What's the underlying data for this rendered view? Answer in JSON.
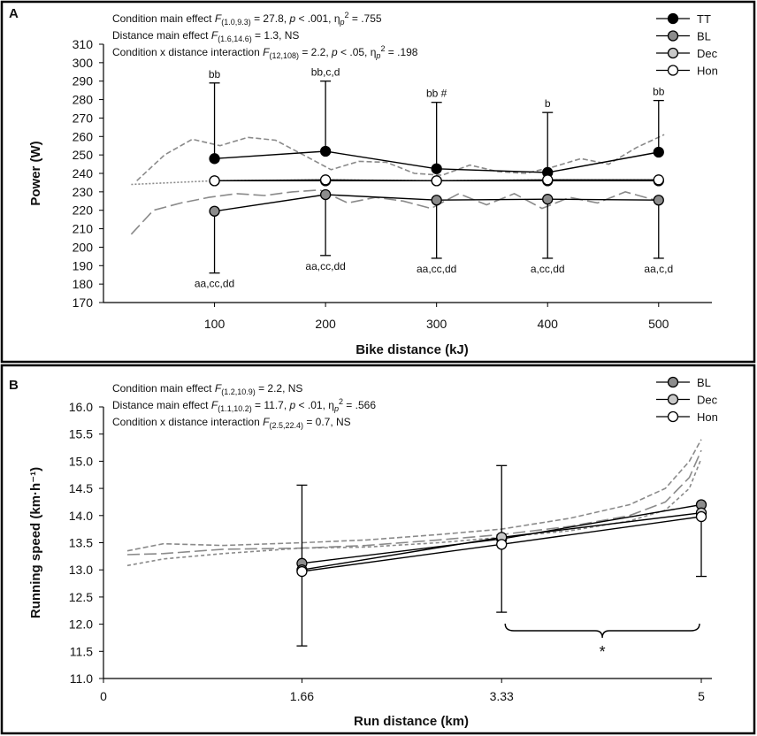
{
  "colors": {
    "tt": "#000000",
    "bl": "#8c8c8c",
    "dec": "#c8c8c8",
    "hon": "#ffffff",
    "trace": "#8a8a8a",
    "axis": "#000000",
    "frame": "#000000"
  },
  "chart_data": [
    {
      "panel": "A",
      "type": "line",
      "xlabel": "Bike distance (kJ)",
      "ylabel": "Power  (W)",
      "x": [
        100,
        200,
        300,
        400,
        500
      ],
      "x_ticks": [
        100,
        200,
        300,
        400,
        500
      ],
      "xlim": [
        0,
        540
      ],
      "ylim": [
        170,
        310
      ],
      "y_ticks": [
        170,
        180,
        190,
        200,
        210,
        220,
        230,
        240,
        250,
        260,
        270,
        280,
        290,
        300,
        310
      ],
      "grid": false,
      "legend_position": "top-right",
      "stats": [
        {
          "prefix": "Condition main effect ",
          "F": "F",
          "df": "(1.0,9.3)",
          "suffix1": " = 27.8, ",
          "p": "p",
          "suffix2": " < .001, ",
          "eta": "η",
          "eta_sub": "p",
          "eta_sup": "2",
          "suffix3": " = .755"
        },
        {
          "prefix": "Distance  main effect ",
          "F": "F",
          "df": "(1.6,14.6)",
          "suffix1": " = 1.3, NS"
        },
        {
          "prefix": "Condition x distance interaction ",
          "F": "F",
          "df": "(12,108)",
          "suffix1": " = 2.2, ",
          "p": "p",
          "suffix2": " < .05, ",
          "eta": "η",
          "eta_sub": "p",
          "eta_sup": "2",
          "suffix3": " = .198"
        }
      ],
      "series": [
        {
          "name": "TT",
          "values": [
            248,
            252,
            242.5,
            240.5,
            251.5
          ],
          "errors_up": [
            289,
            290,
            278.5,
            273,
            279.5
          ]
        },
        {
          "name": "BL",
          "values": [
            219.5,
            228.5,
            225.5,
            226,
            225.5
          ],
          "errors_down": [
            186,
            195.5,
            194,
            194,
            194
          ]
        },
        {
          "name": "Dec",
          "values": [
            236,
            236,
            236,
            236,
            236
          ]
        },
        {
          "name": "Hon",
          "values": [
            236,
            236.5,
            236,
            236.5,
            236.5
          ]
        }
      ],
      "annotations_above": [
        "bb",
        "bb,c,d",
        "bb #",
        "b",
        "bb"
      ],
      "annotations_below": [
        "aa,cc,dd",
        "aa,cc,dd",
        "aa,cc,dd",
        "a,cc,dd",
        "aa,c,d"
      ],
      "traces": [
        {
          "name": "Dec trace",
          "style": "short-dash",
          "x": [
            30,
            55,
            80,
            105,
            130,
            155,
            180,
            205,
            230,
            255,
            280,
            305,
            330,
            355,
            380,
            405,
            430,
            455,
            480,
            505
          ],
          "y": [
            236,
            250,
            258.5,
            255,
            259.5,
            258,
            250,
            242,
            246.5,
            246,
            240,
            239,
            244.5,
            241,
            240,
            243.5,
            248,
            245,
            254,
            261
          ]
        },
        {
          "name": "BL trace",
          "style": "long-dash",
          "x": [
            25,
            45,
            70,
            95,
            120,
            145,
            170,
            195,
            220,
            245,
            270,
            295,
            320,
            345,
            370,
            395,
            420,
            445,
            470,
            500
          ],
          "y": [
            207,
            220,
            224,
            227,
            229,
            228,
            230,
            231,
            224,
            227,
            225,
            221,
            229,
            223,
            229,
            221,
            227,
            224,
            230,
            225
          ]
        },
        {
          "name": "Hon trace",
          "style": "dotted",
          "x": [
            25,
            100,
            200,
            300,
            400,
            500
          ],
          "y": [
            234,
            236,
            236.5,
            236,
            236.5,
            236.5
          ]
        }
      ]
    },
    {
      "panel": "B",
      "type": "line",
      "xlabel": "Run distance (km)",
      "ylabel": "Running speed (km·h⁻¹)",
      "x": [
        1.66,
        3.33,
        5
      ],
      "x_tick_values": [
        0,
        1.66,
        3.33,
        5
      ],
      "x_tick_labels": [
        "0",
        "1.66",
        "3.33",
        "5"
      ],
      "xlim": [
        0,
        5
      ],
      "ylim": [
        11.0,
        16.0
      ],
      "y_ticks": [
        "11.0",
        "11.5",
        "12.0",
        "12.5",
        "13.0",
        "13.5",
        "14.0",
        "14.5",
        "15.0",
        "15.5",
        "16.0"
      ],
      "grid": false,
      "legend_position": "top-right",
      "stats": [
        {
          "prefix": "Condition main effect ",
          "F": "F",
          "df": "(1.2,10.9)",
          "suffix1": " = 2.2, NS"
        },
        {
          "prefix": "Distance  main effect ",
          "F": "F",
          "df": "(1.1,10.2)",
          "suffix1": " = 11.7, ",
          "p": "p",
          "suffix2": " < .01, ",
          "eta": "η",
          "eta_sub": "p",
          "eta_sup": "2",
          "suffix3": " = .566"
        },
        {
          "prefix": "Condition x distance interaction ",
          "F": "F",
          "df": "(2.5,22.4)",
          "suffix1": " = 0.7, NS"
        }
      ],
      "series": [
        {
          "name": "BL",
          "values": [
            13.12,
            13.57,
            14.2
          ],
          "errors_up": [
            14.56,
            14.92,
            null
          ],
          "errors_down": [
            11.6,
            12.22,
            12.88
          ]
        },
        {
          "name": "Dec",
          "values": [
            13.0,
            13.6,
            14.05
          ]
        },
        {
          "name": "Hon",
          "values": [
            12.97,
            13.47,
            13.98
          ]
        }
      ],
      "significance": {
        "from": 3.33,
        "to": 5,
        "label": "*"
      },
      "traces": [
        {
          "name": "short-dash trace",
          "style": "short-dash",
          "x": [
            0.2,
            0.5,
            1.0,
            1.66,
            2.2,
            2.8,
            3.33,
            3.9,
            4.4,
            4.7,
            4.9,
            5.0
          ],
          "y": [
            13.35,
            13.48,
            13.45,
            13.5,
            13.55,
            13.65,
            13.75,
            13.95,
            14.2,
            14.5,
            15.0,
            15.4
          ]
        },
        {
          "name": "long-dash trace",
          "style": "long-dash",
          "x": [
            0.2,
            0.5,
            1.0,
            1.66,
            2.2,
            2.8,
            3.33,
            3.9,
            4.4,
            4.7,
            4.9,
            5.0
          ],
          "y": [
            13.28,
            13.3,
            13.38,
            13.4,
            13.45,
            13.55,
            13.65,
            13.8,
            14.0,
            14.25,
            14.7,
            15.2
          ]
        },
        {
          "name": "dotted-dash trace",
          "style": "dash-dot",
          "x": [
            0.2,
            0.5,
            1.0,
            1.66,
            2.2,
            2.8,
            3.33,
            3.9,
            4.4,
            4.7,
            4.9,
            5.0
          ],
          "y": [
            13.08,
            13.2,
            13.3,
            13.4,
            13.42,
            13.5,
            13.6,
            13.72,
            13.9,
            14.1,
            14.5,
            15.05
          ]
        }
      ]
    }
  ]
}
